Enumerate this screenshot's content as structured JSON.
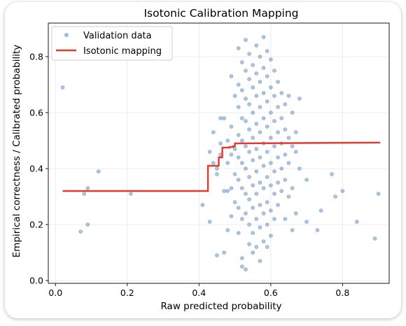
{
  "chart_data": {
    "type": "scatter",
    "title": "Isotonic Calibration Mapping",
    "xlabel": "Raw predicted probability",
    "ylabel": "Empirical correctness / Calibrated probability",
    "xlim": [
      -0.02,
      0.93
    ],
    "ylim": [
      -0.01,
      0.92
    ],
    "xticks": [
      0.0,
      0.2,
      0.4,
      0.6,
      0.8
    ],
    "xtick_labels": [
      "0.0",
      "0.2",
      "0.4",
      "0.6",
      "0.8"
    ],
    "yticks": [
      0.0,
      0.2,
      0.4,
      0.6,
      0.8
    ],
    "ytick_labels": [
      "0.0",
      "0.2",
      "0.4",
      "0.6",
      "0.8"
    ],
    "grid": true,
    "legend_position": "top-left",
    "legend": [
      "Validation data",
      "Isotonic mapping"
    ],
    "colors": {
      "scatter": "#5b8cc0",
      "line": "#e03b30"
    },
    "series": [
      {
        "name": "Validation data",
        "kind": "scatter",
        "points": [
          [
            0.02,
            0.69
          ],
          [
            0.07,
            0.175
          ],
          [
            0.08,
            0.31
          ],
          [
            0.09,
            0.33
          ],
          [
            0.09,
            0.2
          ],
          [
            0.12,
            0.39
          ],
          [
            0.21,
            0.31
          ],
          [
            0.41,
            0.27
          ],
          [
            0.43,
            0.21
          ],
          [
            0.43,
            0.46
          ],
          [
            0.44,
            0.53
          ],
          [
            0.44,
            0.42
          ],
          [
            0.45,
            0.4
          ],
          [
            0.45,
            0.38
          ],
          [
            0.46,
            0.58
          ],
          [
            0.46,
            0.49
          ],
          [
            0.46,
            0.45
          ],
          [
            0.45,
            0.09
          ],
          [
            0.47,
            0.1
          ],
          [
            0.47,
            0.32
          ],
          [
            0.47,
            0.58
          ],
          [
            0.48,
            0.5
          ],
          [
            0.48,
            0.42
          ],
          [
            0.48,
            0.32
          ],
          [
            0.48,
            0.18
          ],
          [
            0.49,
            0.73
          ],
          [
            0.49,
            0.55
          ],
          [
            0.49,
            0.45
          ],
          [
            0.49,
            0.33
          ],
          [
            0.49,
            0.23
          ],
          [
            0.5,
            0.47
          ],
          [
            0.5,
            0.38
          ],
          [
            0.5,
            0.28
          ],
          [
            0.5,
            0.66
          ],
          [
            0.51,
            0.83
          ],
          [
            0.51,
            0.7
          ],
          [
            0.51,
            0.62
          ],
          [
            0.51,
            0.52
          ],
          [
            0.51,
            0.44
          ],
          [
            0.51,
            0.36
          ],
          [
            0.51,
            0.26
          ],
          [
            0.51,
            0.17
          ],
          [
            0.52,
            0.78
          ],
          [
            0.52,
            0.68
          ],
          [
            0.52,
            0.58
          ],
          [
            0.52,
            0.5
          ],
          [
            0.52,
            0.42
          ],
          [
            0.52,
            0.33
          ],
          [
            0.52,
            0.22
          ],
          [
            0.52,
            0.08
          ],
          [
            0.52,
            0.05
          ],
          [
            0.53,
            0.86
          ],
          [
            0.53,
            0.75
          ],
          [
            0.53,
            0.65
          ],
          [
            0.53,
            0.57
          ],
          [
            0.53,
            0.48
          ],
          [
            0.53,
            0.4
          ],
          [
            0.53,
            0.31
          ],
          [
            0.53,
            0.24
          ],
          [
            0.53,
            0.04
          ],
          [
            0.54,
            0.81
          ],
          [
            0.54,
            0.72
          ],
          [
            0.54,
            0.63
          ],
          [
            0.54,
            0.54
          ],
          [
            0.54,
            0.46
          ],
          [
            0.54,
            0.37
          ],
          [
            0.54,
            0.29
          ],
          [
            0.54,
            0.2
          ],
          [
            0.54,
            0.13
          ],
          [
            0.55,
            0.77
          ],
          [
            0.55,
            0.69
          ],
          [
            0.55,
            0.6
          ],
          [
            0.55,
            0.51
          ],
          [
            0.55,
            0.43
          ],
          [
            0.55,
            0.34
          ],
          [
            0.55,
            0.26
          ],
          [
            0.55,
            0.17
          ],
          [
            0.55,
            0.1
          ],
          [
            0.56,
            0.84
          ],
          [
            0.56,
            0.74
          ],
          [
            0.56,
            0.66
          ],
          [
            0.56,
            0.56
          ],
          [
            0.56,
            0.47
          ],
          [
            0.56,
            0.39
          ],
          [
            0.56,
            0.31
          ],
          [
            0.56,
            0.22
          ],
          [
            0.56,
            0.12
          ],
          [
            0.57,
            0.8
          ],
          [
            0.57,
            0.71
          ],
          [
            0.57,
            0.62
          ],
          [
            0.57,
            0.53
          ],
          [
            0.57,
            0.44
          ],
          [
            0.57,
            0.35
          ],
          [
            0.57,
            0.27
          ],
          [
            0.57,
            0.19
          ],
          [
            0.57,
            0.07
          ],
          [
            0.58,
            0.87
          ],
          [
            0.58,
            0.76
          ],
          [
            0.58,
            0.67
          ],
          [
            0.58,
            0.58
          ],
          [
            0.58,
            0.49
          ],
          [
            0.58,
            0.41
          ],
          [
            0.58,
            0.33
          ],
          [
            0.58,
            0.24
          ],
          [
            0.58,
            0.14
          ],
          [
            0.59,
            0.82
          ],
          [
            0.59,
            0.73
          ],
          [
            0.59,
            0.64
          ],
          [
            0.59,
            0.55
          ],
          [
            0.59,
            0.46
          ],
          [
            0.59,
            0.37
          ],
          [
            0.59,
            0.28
          ],
          [
            0.59,
            0.2
          ],
          [
            0.59,
            0.12
          ],
          [
            0.6,
            0.79
          ],
          [
            0.6,
            0.69
          ],
          [
            0.6,
            0.6
          ],
          [
            0.6,
            0.51
          ],
          [
            0.6,
            0.42
          ],
          [
            0.6,
            0.34
          ],
          [
            0.6,
            0.25
          ],
          [
            0.6,
            0.16
          ],
          [
            0.61,
            0.75
          ],
          [
            0.61,
            0.66
          ],
          [
            0.61,
            0.57
          ],
          [
            0.61,
            0.48
          ],
          [
            0.61,
            0.39
          ],
          [
            0.61,
            0.31
          ],
          [
            0.61,
            0.22
          ],
          [
            0.62,
            0.71
          ],
          [
            0.62,
            0.62
          ],
          [
            0.62,
            0.53
          ],
          [
            0.62,
            0.44
          ],
          [
            0.62,
            0.35
          ],
          [
            0.62,
            0.27
          ],
          [
            0.63,
            0.67
          ],
          [
            0.63,
            0.58
          ],
          [
            0.63,
            0.49
          ],
          [
            0.63,
            0.4
          ],
          [
            0.63,
            0.32
          ],
          [
            0.64,
            0.63
          ],
          [
            0.64,
            0.54
          ],
          [
            0.64,
            0.45
          ],
          [
            0.64,
            0.36
          ],
          [
            0.64,
            0.22
          ],
          [
            0.65,
            0.66
          ],
          [
            0.65,
            0.51
          ],
          [
            0.65,
            0.42
          ],
          [
            0.65,
            0.3
          ],
          [
            0.66,
            0.6
          ],
          [
            0.66,
            0.48
          ],
          [
            0.66,
            0.33
          ],
          [
            0.66,
            0.18
          ],
          [
            0.67,
            0.53
          ],
          [
            0.67,
            0.46
          ],
          [
            0.67,
            0.24
          ],
          [
            0.68,
            0.65
          ],
          [
            0.68,
            0.4
          ],
          [
            0.7,
            0.21
          ],
          [
            0.7,
            0.36
          ],
          [
            0.73,
            0.18
          ],
          [
            0.74,
            0.25
          ],
          [
            0.77,
            0.38
          ],
          [
            0.78,
            0.3
          ],
          [
            0.8,
            0.32
          ],
          [
            0.84,
            0.21
          ],
          [
            0.89,
            0.15
          ],
          [
            0.9,
            0.31
          ]
        ]
      },
      {
        "name": "Isotonic mapping",
        "kind": "step-line",
        "points": [
          [
            0.02,
            0.32
          ],
          [
            0.425,
            0.32
          ],
          [
            0.425,
            0.41
          ],
          [
            0.455,
            0.41
          ],
          [
            0.455,
            0.44
          ],
          [
            0.465,
            0.44
          ],
          [
            0.465,
            0.475
          ],
          [
            0.485,
            0.475
          ],
          [
            0.485,
            0.477
          ],
          [
            0.495,
            0.477
          ],
          [
            0.495,
            0.48
          ],
          [
            0.5,
            0.48
          ],
          [
            0.5,
            0.49
          ],
          [
            0.905,
            0.493
          ]
        ]
      }
    ]
  }
}
